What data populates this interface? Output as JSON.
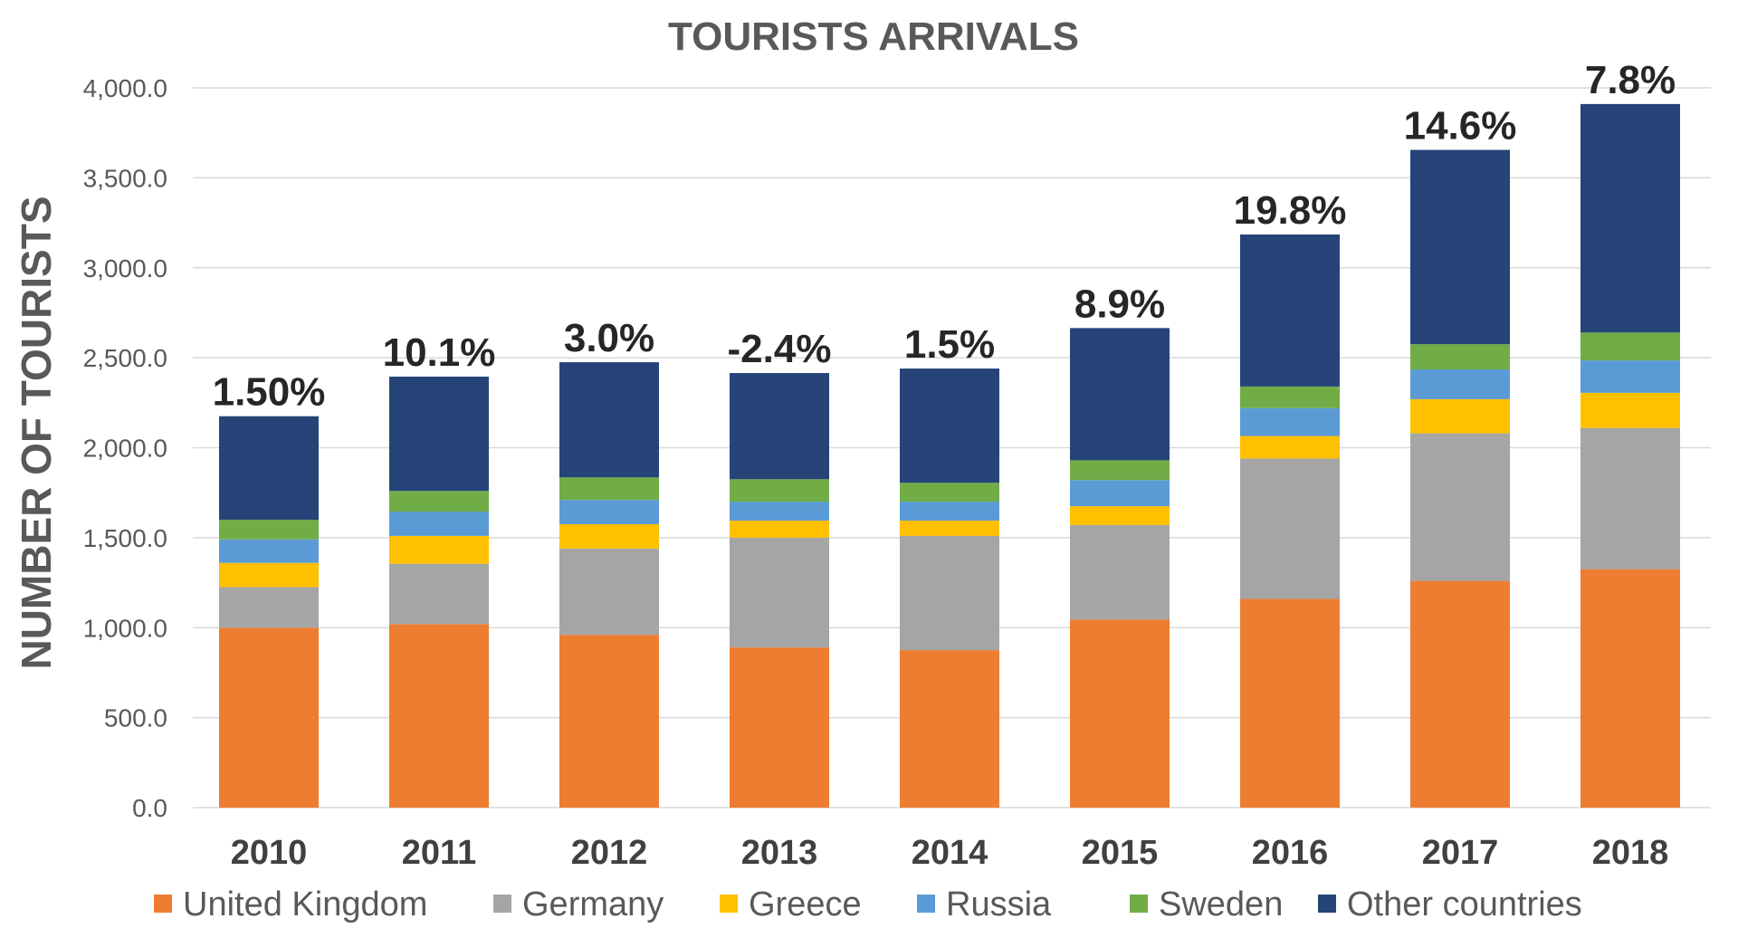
{
  "chart_data": {
    "type": "bar",
    "stacked": true,
    "title": "TOURISTS ARRIVALS",
    "xlabel": "",
    "ylabel": "NUMBER OF TOURISTS",
    "ylim": [
      0,
      4000
    ],
    "yticks": [
      "0.0",
      "500.0",
      "1,000.0",
      "1,500.0",
      "2,000.0",
      "2,500.0",
      "3,000.0",
      "3,500.0",
      "4,000.0"
    ],
    "ytick_values": [
      0,
      500,
      1000,
      1500,
      2000,
      2500,
      3000,
      3500,
      4000
    ],
    "grid": true,
    "legend_position": "bottom",
    "categories": [
      "2010",
      "2011",
      "2012",
      "2013",
      "2014",
      "2015",
      "2016",
      "2017",
      "2018"
    ],
    "series": [
      {
        "name": "United Kingdom",
        "color": "#ED7D31",
        "values": [
          1000,
          1020,
          960,
          890,
          875,
          1045,
          1160,
          1260,
          1325
        ]
      },
      {
        "name": "Germany",
        "color": "#A5A5A5",
        "values": [
          225,
          335,
          480,
          610,
          635,
          525,
          780,
          820,
          785
        ]
      },
      {
        "name": "Greece",
        "color": "#FFC000",
        "values": [
          135,
          155,
          135,
          95,
          85,
          105,
          125,
          190,
          195
        ]
      },
      {
        "name": "Russia",
        "color": "#5B9BD5",
        "values": [
          130,
          135,
          135,
          105,
          105,
          145,
          155,
          165,
          180
        ]
      },
      {
        "name": "Sweden",
        "color": "#70AD47",
        "values": [
          110,
          115,
          125,
          125,
          105,
          110,
          120,
          140,
          155
        ]
      },
      {
        "name": "Other countries",
        "color": "#264478",
        "values": [
          575,
          635,
          640,
          590,
          635,
          735,
          845,
          1080,
          1270
        ]
      }
    ],
    "annotations": [
      "1.50%",
      "10.1%",
      "3.0%",
      "-2.4%",
      "1.5%",
      "8.9%",
      "19.8%",
      "14.6%",
      "7.8%"
    ]
  }
}
